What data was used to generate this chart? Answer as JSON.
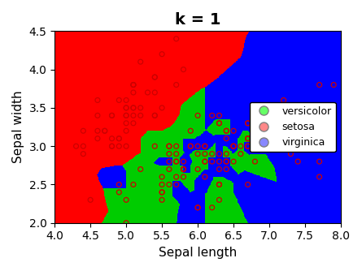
{
  "title": "k = 1",
  "xlabel": "Sepal length",
  "ylabel": "Sepal width",
  "xlim": [
    4,
    8
  ],
  "ylim": [
    2,
    4.5
  ],
  "mesh_resolution": 400,
  "class_colors_bg": [
    "#00cc00",
    "#ff0000",
    "#0000ff"
  ],
  "scatter_edgecolor": "#cc0000",
  "cross_color": "black",
  "legend_labels": [
    "versicolor",
    "setosa",
    "virginica"
  ],
  "legend_dot_colors": [
    "#66ff66",
    "#ff8888",
    "#8888ff"
  ],
  "title_fontsize": 14,
  "title_fontweight": "bold",
  "k": 1
}
